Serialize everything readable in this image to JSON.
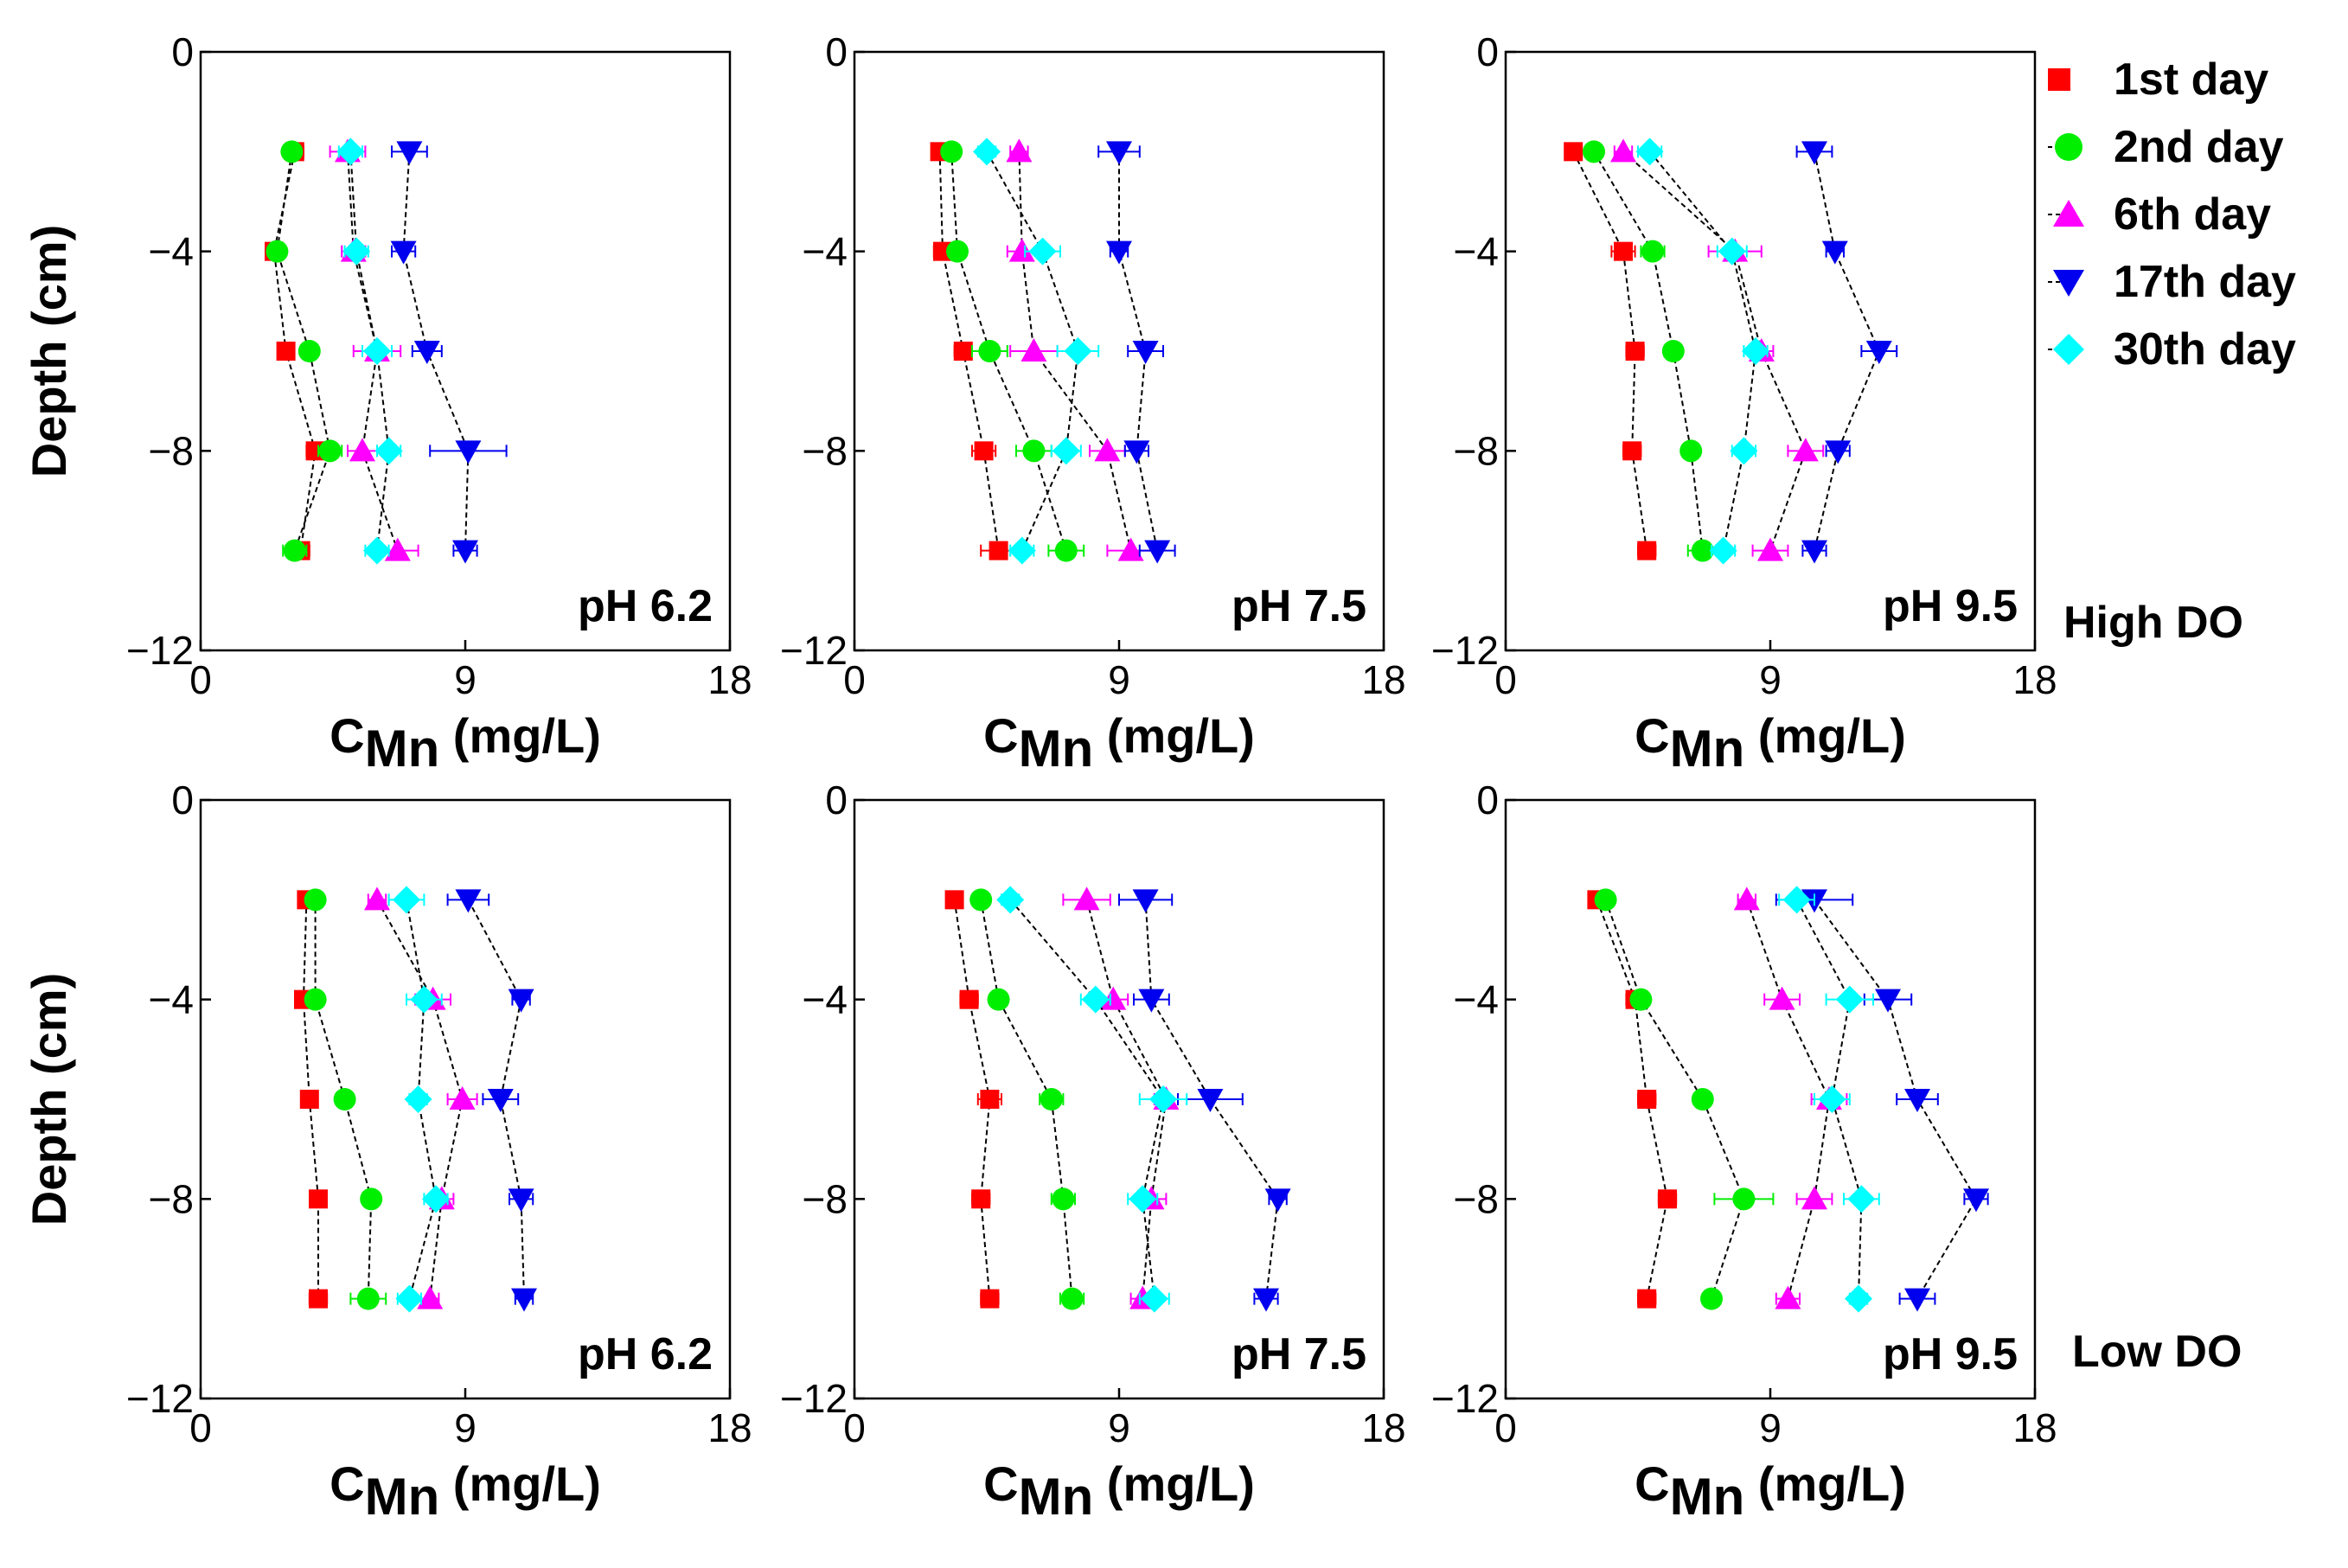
{
  "legend": {
    "entries": [
      {
        "label": "1st day",
        "color": "#ff0000",
        "marker": "square"
      },
      {
        "label": "2nd day",
        "color": "#00ee00",
        "marker": "circle"
      },
      {
        "label": "6th day",
        "color": "#ff00ff",
        "marker": "triangle-up"
      },
      {
        "label": "17th day",
        "color": "#0000ee",
        "marker": "triangle-down"
      },
      {
        "label": "30th day",
        "color": "#00ffff",
        "marker": "diamond"
      }
    ]
  },
  "row_labels": [
    "High DO",
    "Low DO"
  ],
  "chart_data": [
    {
      "type": "scatter",
      "ph_label": "pH 6.2",
      "row": 0,
      "col": 0,
      "xlabel_main": "C",
      "xlabel_sub": "Mn",
      "xlabel_unit": " (mg/L)",
      "ylabel": "Depth (cm)",
      "xlim": [
        0,
        18
      ],
      "ylim": [
        -12,
        0
      ],
      "xticks": [
        "0",
        "9",
        "18"
      ],
      "yticks": [
        "0",
        "-4",
        "-8",
        "-12"
      ],
      "depths": [
        -2,
        -4,
        -6,
        -8,
        -10
      ],
      "series": [
        {
          "x": [
            3.2,
            2.5,
            2.9,
            3.9,
            3.4
          ],
          "err": [
            0.3,
            0.2,
            0.2,
            0.3,
            0.3
          ]
        },
        {
          "x": [
            3.1,
            2.6,
            3.7,
            4.4,
            3.2
          ],
          "err": [
            0.2,
            0.2,
            0.3,
            0.4,
            0.4
          ]
        },
        {
          "x": [
            5.0,
            5.2,
            6.0,
            5.5,
            6.7
          ],
          "err": [
            0.6,
            0.4,
            0.8,
            0.5,
            0.7
          ]
        },
        {
          "x": [
            7.1,
            6.9,
            7.7,
            9.1,
            9.0
          ],
          "err": [
            0.6,
            0.4,
            0.5,
            1.3,
            0.4
          ]
        },
        {
          "x": [
            5.1,
            5.3,
            6.0,
            6.4,
            6.0
          ],
          "err": [
            0.4,
            0.4,
            0.5,
            0.4,
            0.4
          ]
        }
      ]
    },
    {
      "type": "scatter",
      "ph_label": "pH 7.5",
      "row": 0,
      "col": 1,
      "xlabel_main": "C",
      "xlabel_sub": "Mn",
      "xlabel_unit": " (mg/L)",
      "ylabel": "",
      "xlim": [
        0,
        18
      ],
      "ylim": [
        -12,
        0
      ],
      "xticks": [
        "0",
        "9",
        "18"
      ],
      "yticks": [
        "0",
        "-4",
        "-8",
        "-12"
      ],
      "depths": [
        -2,
        -4,
        -6,
        -8,
        -10
      ],
      "series": [
        {
          "x": [
            2.9,
            3.0,
            3.7,
            4.4,
            4.9
          ],
          "err": [
            0.2,
            0.3,
            0.3,
            0.4,
            0.6
          ]
        },
        {
          "x": [
            3.3,
            3.5,
            4.6,
            6.1,
            7.2
          ],
          "err": [
            0.3,
            0.3,
            0.6,
            0.6,
            0.6
          ]
        },
        {
          "x": [
            5.6,
            5.7,
            6.1,
            8.6,
            9.4
          ],
          "err": [
            0.3,
            0.5,
            0.8,
            0.6,
            0.8
          ]
        },
        {
          "x": [
            9.0,
            9.0,
            9.9,
            9.6,
            10.3
          ],
          "err": [
            0.7,
            0.3,
            0.6,
            0.4,
            0.6
          ]
        },
        {
          "x": [
            4.5,
            6.4,
            7.6,
            7.2,
            5.7
          ],
          "err": [
            0.3,
            0.6,
            0.7,
            0.5,
            0.4
          ]
        }
      ]
    },
    {
      "type": "scatter",
      "ph_label": "pH 9.5",
      "row": 0,
      "col": 2,
      "xlabel_main": "C",
      "xlabel_sub": "Mn",
      "xlabel_unit": " (mg/L)",
      "ylabel": "",
      "xlim": [
        0,
        18
      ],
      "ylim": [
        -12,
        0
      ],
      "xticks": [
        "0",
        "9",
        "18"
      ],
      "yticks": [
        "0",
        "-4",
        "-8",
        "-12"
      ],
      "depths": [
        -2,
        -4,
        -6,
        -8,
        -10
      ],
      "series": [
        {
          "x": [
            2.3,
            4.0,
            4.4,
            4.3,
            4.8
          ],
          "err": [
            0.2,
            0.4,
            0.3,
            0.3,
            0.3
          ]
        },
        {
          "x": [
            3.0,
            5.0,
            5.7,
            6.3,
            6.7
          ],
          "err": [
            0.2,
            0.4,
            0.3,
            0.3,
            0.5
          ]
        },
        {
          "x": [
            4.0,
            7.8,
            8.7,
            10.2,
            9.0
          ],
          "err": [
            0.3,
            0.9,
            0.4,
            0.6,
            0.6
          ]
        },
        {
          "x": [
            10.5,
            11.2,
            12.7,
            11.3,
            10.5
          ],
          "err": [
            0.6,
            0.3,
            0.6,
            0.4,
            0.4
          ]
        },
        {
          "x": [
            4.9,
            7.7,
            8.5,
            8.1,
            7.4
          ],
          "err": [
            0.4,
            0.5,
            0.4,
            0.4,
            0.4
          ]
        }
      ]
    },
    {
      "type": "scatter",
      "ph_label": "pH 6.2",
      "row": 1,
      "col": 0,
      "xlabel_main": "C",
      "xlabel_sub": "Mn",
      "xlabel_unit": " (mg/L)",
      "ylabel": "Depth (cm)",
      "xlim": [
        0,
        18
      ],
      "ylim": [
        -12,
        0
      ],
      "xticks": [
        "0",
        "9",
        "18"
      ],
      "yticks": [
        "0",
        "-4",
        "-8",
        "-12"
      ],
      "depths": [
        -2,
        -4,
        -6,
        -8,
        -10
      ],
      "series": [
        {
          "x": [
            3.6,
            3.5,
            3.7,
            4.0,
            4.0
          ],
          "err": [
            0.2,
            0.2,
            0.2,
            0.2,
            0.3
          ]
        },
        {
          "x": [
            3.9,
            3.9,
            4.9,
            5.8,
            5.7
          ],
          "err": [
            0.2,
            0.3,
            0.3,
            0.3,
            0.6
          ]
        },
        {
          "x": [
            6.0,
            7.9,
            8.9,
            8.2,
            7.8
          ],
          "err": [
            0.3,
            0.6,
            0.5,
            0.4,
            0.3
          ]
        },
        {
          "x": [
            9.1,
            10.9,
            10.2,
            10.9,
            11.0
          ],
          "err": [
            0.7,
            0.3,
            0.6,
            0.4,
            0.3
          ]
        },
        {
          "x": [
            7.0,
            7.6,
            7.4,
            8.0,
            7.1
          ],
          "err": [
            0.6,
            0.6,
            0.3,
            0.4,
            0.4
          ]
        }
      ]
    },
    {
      "type": "scatter",
      "ph_label": "pH 7.5",
      "row": 1,
      "col": 1,
      "xlabel_main": "C",
      "xlabel_sub": "Mn",
      "xlabel_unit": " (mg/L)",
      "ylabel": "",
      "xlim": [
        0,
        18
      ],
      "ylim": [
        -12,
        0
      ],
      "xticks": [
        "0",
        "9",
        "18"
      ],
      "yticks": [
        "0",
        "-4",
        "-8",
        "-12"
      ],
      "depths": [
        -2,
        -4,
        -6,
        -8,
        -10
      ],
      "series": [
        {
          "x": [
            3.4,
            3.9,
            4.6,
            4.3,
            4.6
          ],
          "err": [
            0.2,
            0.3,
            0.4,
            0.3,
            0.3
          ]
        },
        {
          "x": [
            4.3,
            4.9,
            6.7,
            7.1,
            7.4
          ],
          "err": [
            0.3,
            0.3,
            0.4,
            0.4,
            0.4
          ]
        },
        {
          "x": [
            7.9,
            8.8,
            10.6,
            10.1,
            9.8
          ],
          "err": [
            0.8,
            0.5,
            0.4,
            0.5,
            0.4
          ]
        },
        {
          "x": [
            9.9,
            10.1,
            12.1,
            14.4,
            14.0
          ],
          "err": [
            0.9,
            0.6,
            1.1,
            0.3,
            0.4
          ]
        },
        {
          "x": [
            5.3,
            8.2,
            10.5,
            9.8,
            10.2
          ],
          "err": [
            0.3,
            0.5,
            0.8,
            0.5,
            0.5
          ]
        }
      ]
    },
    {
      "type": "scatter",
      "ph_label": "pH 9.5",
      "row": 1,
      "col": 2,
      "xlabel_main": "C",
      "xlabel_sub": "Mn",
      "xlabel_unit": " (mg/L)",
      "ylabel": "",
      "xlim": [
        0,
        18
      ],
      "ylim": [
        -12,
        0
      ],
      "xticks": [
        "0",
        "9",
        "18"
      ],
      "yticks": [
        "0",
        "-4",
        "-8",
        "-12"
      ],
      "depths": [
        -2,
        -4,
        -6,
        -8,
        -10
      ],
      "series": [
        {
          "x": [
            3.1,
            4.4,
            4.8,
            5.5,
            4.8
          ],
          "err": [
            0.2,
            0.3,
            0.3,
            0.3,
            0.3
          ]
        },
        {
          "x": [
            3.4,
            4.6,
            6.7,
            8.1,
            7.0
          ],
          "err": [
            0.2,
            0.3,
            0.3,
            1.0,
            0.3
          ]
        },
        {
          "x": [
            8.2,
            9.4,
            11.0,
            10.5,
            9.6
          ],
          "err": [
            0.3,
            0.6,
            0.6,
            0.6,
            0.4
          ]
        },
        {
          "x": [
            10.5,
            13.0,
            14.0,
            16.0,
            14.0
          ],
          "err": [
            1.3,
            0.8,
            0.7,
            0.4,
            0.6
          ]
        },
        {
          "x": [
            9.9,
            11.7,
            11.1,
            12.1,
            12.0
          ],
          "err": [
            0.6,
            0.8,
            0.6,
            0.6,
            0.3
          ]
        }
      ]
    }
  ]
}
